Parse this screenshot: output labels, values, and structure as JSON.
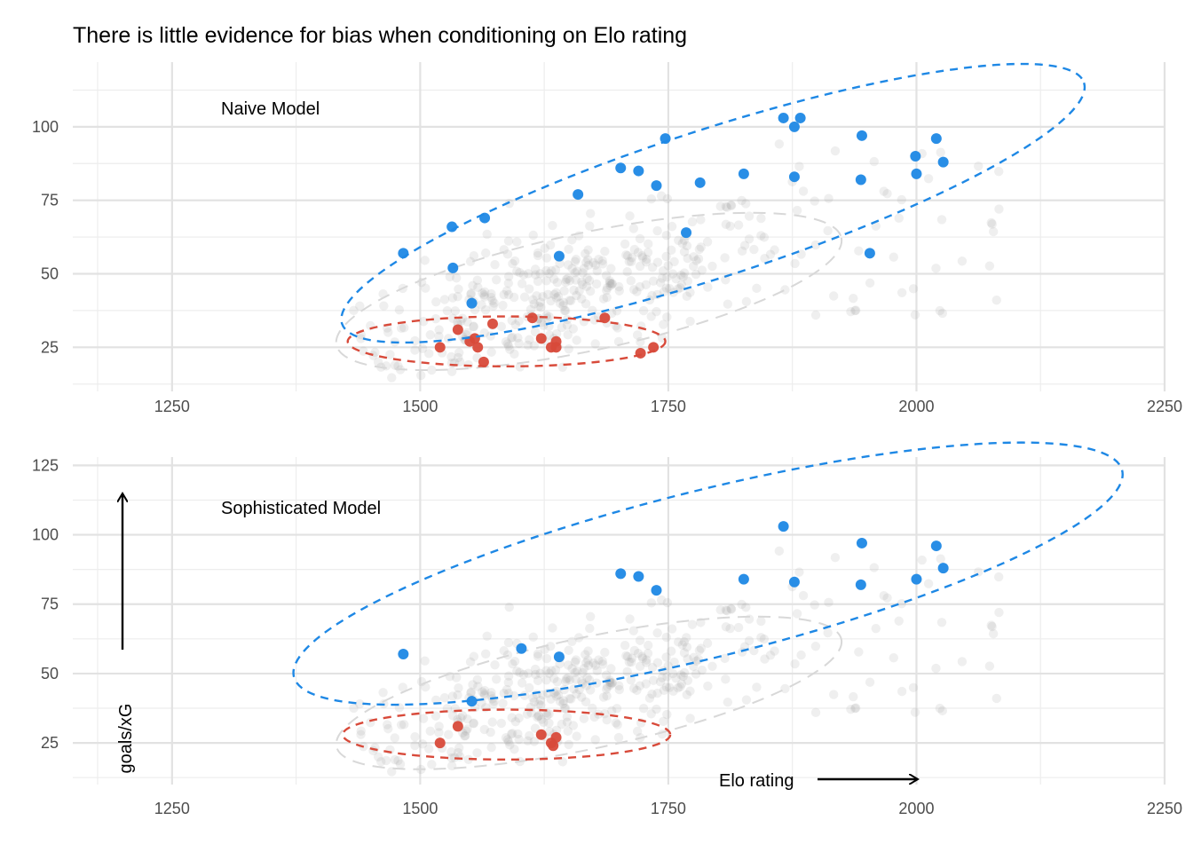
{
  "chart_data": {
    "type": "scatter",
    "title": "There is little evidence for bias when conditioning on Elo rating",
    "xlabel": "Elo rating",
    "ylabel": "goals/xG",
    "grid": true,
    "colors": {
      "high": "#1e88e5",
      "low": "#d84a3a",
      "background": "#9e9e9e",
      "bg_ellipse": "#d8d8d8"
    },
    "panels": [
      {
        "label": "Naive Model",
        "xlim": [
          1150,
          2250
        ],
        "ylim": [
          10,
          122
        ],
        "xticks": [
          1250,
          1500,
          1750,
          2000,
          2250
        ],
        "yticks": [
          25,
          50,
          75,
          100
        ],
        "high_points": [
          [
            1483,
            57
          ],
          [
            1532,
            66
          ],
          [
            1533,
            52
          ],
          [
            1565,
            69
          ],
          [
            1640,
            56
          ],
          [
            1659,
            77
          ],
          [
            1702,
            86
          ],
          [
            1720,
            85
          ],
          [
            1738,
            80
          ],
          [
            1747,
            96
          ],
          [
            1768,
            64
          ],
          [
            1782,
            81
          ],
          [
            1826,
            84
          ],
          [
            1866,
            103
          ],
          [
            1877,
            100
          ],
          [
            1877,
            83
          ],
          [
            1883,
            103
          ],
          [
            1944,
            82
          ],
          [
            1945,
            97
          ],
          [
            1953,
            57
          ],
          [
            1999,
            90
          ],
          [
            2000,
            84
          ],
          [
            2020,
            96
          ],
          [
            2027,
            88
          ],
          [
            1552,
            40
          ]
        ],
        "low_points": [
          [
            1520,
            25
          ],
          [
            1538,
            31
          ],
          [
            1550,
            27
          ],
          [
            1555,
            28
          ],
          [
            1558,
            25
          ],
          [
            1564,
            20
          ],
          [
            1573,
            33
          ],
          [
            1613,
            35
          ],
          [
            1622,
            28
          ],
          [
            1632,
            25
          ],
          [
            1637,
            27
          ],
          [
            1637,
            25
          ],
          [
            1686,
            35
          ],
          [
            1722,
            23
          ],
          [
            1735,
            25
          ]
        ],
        "high_ellipse": {
          "cx": 1795,
          "cy": 74,
          "rx": 393,
          "ry": 25,
          "angle_deg": 18
        },
        "low_ellipse": {
          "cx": 1587,
          "cy": 27,
          "rx": 160,
          "ry": 8.5,
          "angle_deg": 0
        },
        "bg_ellipse": {
          "cx": 1670,
          "cy": 44,
          "rx": 260,
          "ry": 20,
          "angle_deg": 12
        }
      },
      {
        "label": "Sophisticated Model",
        "xlim": [
          1150,
          2250
        ],
        "ylim": [
          10,
          128
        ],
        "xticks": [
          1250,
          1500,
          1750,
          2000,
          2250
        ],
        "yticks": [
          25,
          50,
          75,
          100,
          125
        ],
        "high_points": [
          [
            1483,
            57
          ],
          [
            1552,
            40
          ],
          [
            1602,
            59
          ],
          [
            1640,
            56
          ],
          [
            1702,
            86
          ],
          [
            1720,
            85
          ],
          [
            1738,
            80
          ],
          [
            1826,
            84
          ],
          [
            1866,
            103
          ],
          [
            1877,
            83
          ],
          [
            1945,
            97
          ],
          [
            1944,
            82
          ],
          [
            2000,
            84
          ],
          [
            2020,
            96
          ],
          [
            2027,
            88
          ]
        ],
        "low_points": [
          [
            1520,
            25
          ],
          [
            1538,
            31
          ],
          [
            1622,
            28
          ],
          [
            1632,
            25
          ],
          [
            1637,
            27
          ],
          [
            1634,
            24
          ]
        ],
        "high_ellipse": {
          "cx": 1790,
          "cy": 86,
          "rx": 430,
          "ry": 30,
          "angle_deg": 14
        },
        "low_ellipse": {
          "cx": 1587,
          "cy": 28,
          "rx": 165,
          "ry": 9,
          "angle_deg": 0
        },
        "bg_ellipse": {
          "cx": 1670,
          "cy": 43,
          "rx": 260,
          "ry": 20,
          "angle_deg": 12
        }
      }
    ]
  }
}
